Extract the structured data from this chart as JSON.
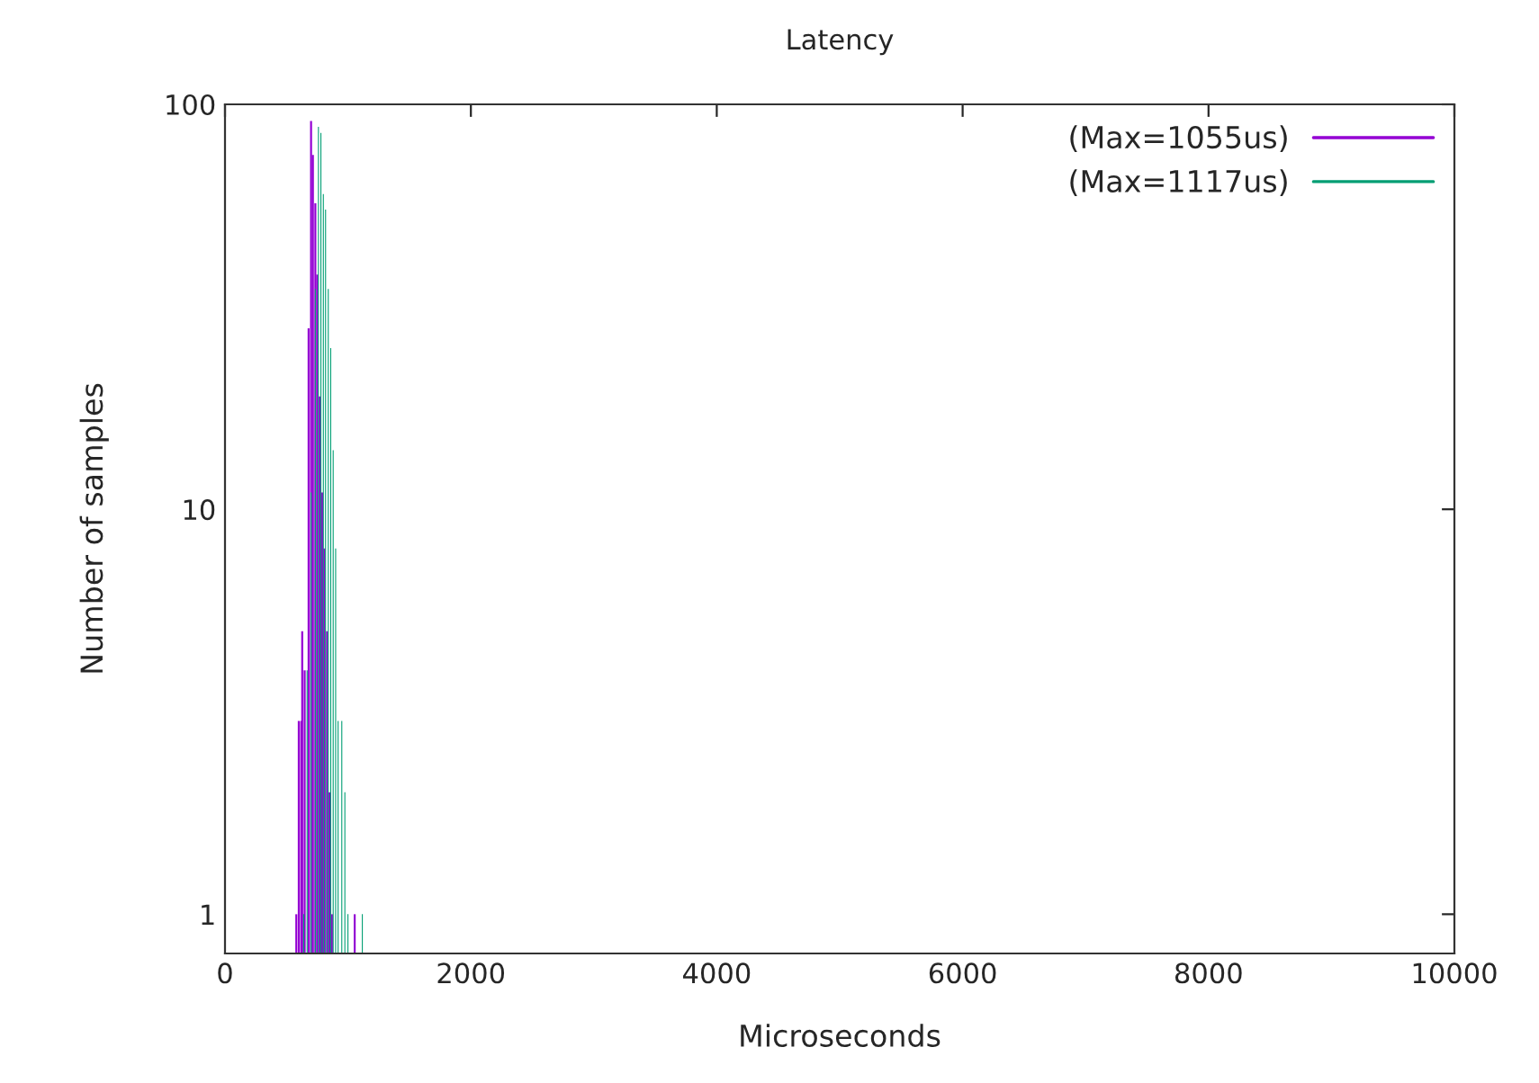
{
  "chart_data": {
    "type": "bar",
    "title": "Latency",
    "xlabel": "Microseconds",
    "ylabel": "Number of samples",
    "xlim": [
      0,
      10000
    ],
    "xticks": [
      0,
      2000,
      4000,
      6000,
      8000,
      10000
    ],
    "ylim": [
      0.8,
      100
    ],
    "yticks": [
      1,
      10,
      100
    ],
    "log": "y",
    "grid": false,
    "legend": "top right",
    "series": [
      {
        "name": "(Max=1055us)",
        "color": "#9400d3",
        "x": [
          580,
          600,
          620,
          628,
          648,
          680,
          700,
          715,
          735,
          750,
          770,
          790,
          808,
          830,
          850,
          870,
          1055
        ],
        "values": [
          1,
          3,
          3,
          5,
          4,
          28,
          91,
          75,
          57,
          38,
          19,
          11,
          8,
          5,
          2,
          1,
          1
        ]
      },
      {
        "name": "(Max=1117us)",
        "color": "#009e73",
        "x": [
          640,
          668,
          700,
          735,
          760,
          780,
          800,
          818,
          840,
          860,
          880,
          900,
          920,
          950,
          975,
          1000,
          1117
        ],
        "values": [
          1,
          4,
          11,
          35,
          88,
          85,
          60,
          55,
          35,
          25,
          14,
          8,
          3,
          3,
          2,
          1,
          1
        ]
      }
    ]
  }
}
